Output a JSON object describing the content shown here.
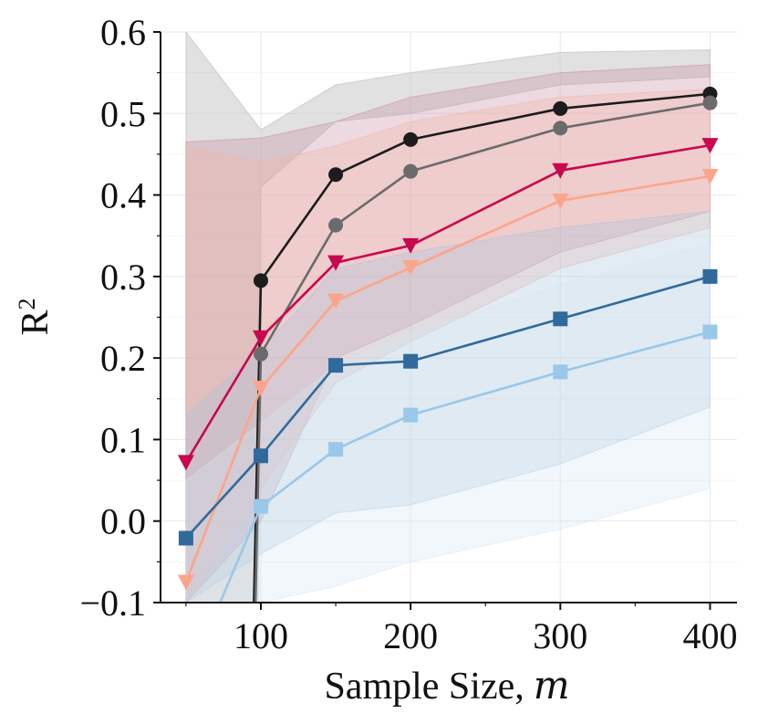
{
  "chart_data": {
    "type": "line",
    "xlabel": "Sample Size,",
    "xlabel_var": "m",
    "ylabel": "R",
    "ylabel_sup": "2",
    "xlim": [
      33,
      418
    ],
    "ylim": [
      -0.1,
      0.6
    ],
    "x_ticks": [
      100,
      200,
      300,
      400
    ],
    "x_tick_labels": [
      "100",
      "200",
      "300",
      "400"
    ],
    "y_ticks": [
      -0.1,
      0.0,
      0.1,
      0.2,
      0.3,
      0.4,
      0.5,
      0.6
    ],
    "y_tick_labels": [
      "−0.1",
      "0.0",
      "0.1",
      "0.2",
      "0.3",
      "0.4",
      "0.5",
      "0.6"
    ],
    "grid": true,
    "x": [
      50,
      100,
      150,
      200,
      300,
      400
    ],
    "series": [
      {
        "color": "#1c1c1c",
        "marker": "circle",
        "values": [
          null,
          0.295,
          0.425,
          0.468,
          0.506,
          0.524
        ],
        "lead_in": {
          "x": [
            93,
            95
          ],
          "y": [
            -0.1,
            -0.1
          ]
        },
        "band_color": "#c8c8c8",
        "band_lower": [
          null,
          0.41,
          0.49,
          0.5,
          0.535,
          0.545
        ],
        "band_upper": [
          0.6,
          0.48,
          0.535,
          0.55,
          0.575,
          0.578
        ]
      },
      {
        "color": "#6b6b6b",
        "marker": "circle",
        "values": [
          null,
          0.205,
          0.363,
          0.429,
          0.482,
          0.513
        ],
        "lead_in": {
          "x": [
            96
          ],
          "y": [
            -0.1
          ]
        },
        "band_color": "#c8c8c8",
        "band_lower": [
          null,
          0.41,
          0.49,
          0.5,
          0.535,
          0.545
        ],
        "band_upper": [
          0.6,
          0.48,
          0.535,
          0.55,
          0.575,
          0.578
        ]
      },
      {
        "color": "#c9064f",
        "marker": "triangle-down",
        "values": [
          0.072,
          0.225,
          0.317,
          0.338,
          0.43,
          0.461
        ],
        "band_color": "#c8889e",
        "band_lower": [
          -0.1,
          0.0,
          0.2,
          0.24,
          0.33,
          0.38
        ],
        "band_upper": [
          0.465,
          0.47,
          0.49,
          0.52,
          0.55,
          0.56
        ]
      },
      {
        "color": "#fca58a",
        "marker": "triangle-down",
        "values": [
          -0.075,
          0.163,
          0.27,
          0.311,
          0.393,
          0.423
        ],
        "band_color": "#f2b5a5",
        "band_lower": [
          -0.1,
          0.04,
          0.17,
          0.22,
          0.31,
          0.36
        ],
        "band_upper": [
          0.46,
          0.44,
          0.46,
          0.49,
          0.52,
          0.53
        ]
      },
      {
        "color": "#306a9c",
        "marker": "square",
        "values": [
          -0.021,
          0.08,
          0.191,
          0.196,
          0.248,
          0.3
        ],
        "band_color": "#a8c4dc",
        "band_lower": [
          -0.1,
          -0.04,
          0.01,
          0.02,
          0.07,
          0.14
        ],
        "band_upper": [
          0.13,
          0.21,
          0.31,
          0.33,
          0.36,
          0.38
        ]
      },
      {
        "color": "#9ac8e8",
        "marker": "square",
        "values": [
          null,
          0.018,
          0.088,
          0.13,
          0.183,
          0.232
        ],
        "lead_in": {
          "x": [
            65
          ],
          "y": [
            -0.1
          ]
        },
        "band_color": "#d6e6f3",
        "band_lower": [
          -0.1,
          -0.1,
          -0.08,
          -0.05,
          -0.01,
          0.04
        ],
        "band_upper": [
          0.05,
          0.12,
          0.19,
          0.23,
          0.29,
          0.34
        ]
      }
    ]
  }
}
